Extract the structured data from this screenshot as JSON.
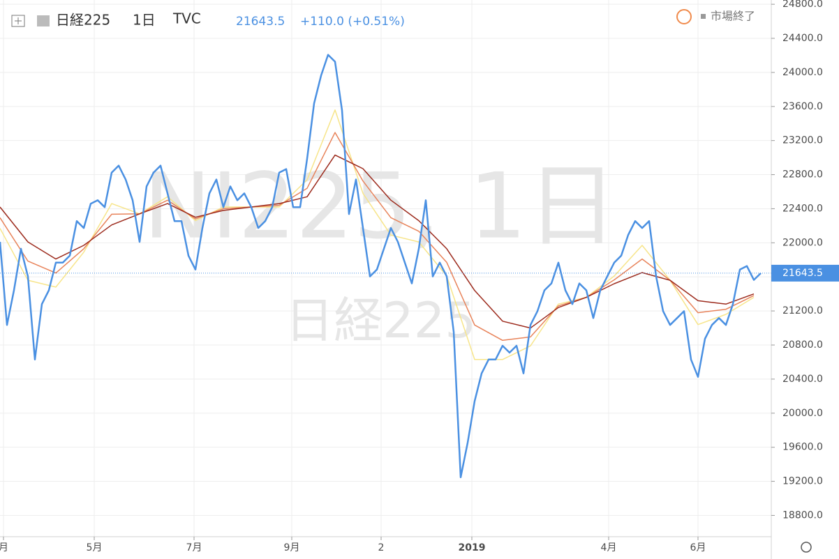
{
  "chart_data": {
    "type": "line",
    "symbol": "日経225",
    "interval": "1日",
    "exchange": "TVC",
    "last_value": 21643.5,
    "change": "+110.0 (+0.51%)",
    "status": "市場終了",
    "watermark": "NI225, 1日",
    "watermark_sub": "日経225",
    "x": [
      0,
      1,
      2,
      3,
      4,
      5,
      6,
      7,
      8,
      9,
      10,
      11,
      12,
      13,
      14,
      15,
      16,
      17,
      18,
      19,
      20,
      21,
      22,
      23,
      24,
      25,
      26,
      27,
      28,
      29,
      30,
      31,
      32,
      33,
      34,
      35,
      36,
      37,
      38,
      39,
      40,
      41,
      42,
      43,
      44,
      45,
      46,
      47,
      48,
      49,
      50,
      51,
      52,
      53,
      54,
      55,
      56,
      57,
      58,
      59,
      60,
      61,
      62,
      63,
      64,
      65,
      66,
      67,
      68,
      69,
      70,
      71,
      72,
      73,
      74,
      75,
      76,
      77,
      78,
      79,
      80,
      81,
      82,
      83,
      84,
      85,
      86,
      87,
      88,
      89,
      90,
      91,
      92,
      93,
      94,
      95,
      96,
      97,
      98,
      99,
      100,
      101,
      102,
      103,
      104,
      105,
      106,
      107,
      108,
      109
    ],
    "series": [
      {
        "color": "#f7e58a",
        "x": [
          0,
          4,
          8,
          12,
          16,
          20,
          24,
          28,
          32,
          36,
          40,
          44,
          48,
          52,
          56,
          60,
          64,
          68,
          72,
          76,
          80,
          84,
          88,
          92,
          96,
          100,
          104,
          108
        ],
        "values": [
          22170,
          21560,
          21480,
          21890,
          22460,
          22340,
          22540,
          22260,
          22420,
          22420,
          22420,
          22740,
          23560,
          22580,
          22090,
          22010,
          21610,
          20630,
          20630,
          20790,
          21280,
          21360,
          21610,
          21970,
          21560,
          21040,
          21160,
          21360
        ]
      },
      {
        "color": "#e8835a",
        "x": [
          0,
          4,
          8,
          12,
          16,
          20,
          24,
          28,
          32,
          36,
          40,
          44,
          48,
          52,
          56,
          60,
          64,
          68,
          72,
          76,
          80,
          84,
          88,
          92,
          96,
          100,
          104,
          108
        ],
        "values": [
          22295,
          21785,
          21645,
          21930,
          22335,
          22340,
          22500,
          22280,
          22400,
          22420,
          22440,
          22640,
          23295,
          22725,
          22295,
          22135,
          21770,
          21035,
          20855,
          20895,
          21260,
          21360,
          21565,
          21810,
          21560,
          21180,
          21220,
          21380
        ]
      },
      {
        "color": "#9c2a1c",
        "x": [
          0,
          4,
          8,
          12,
          16,
          20,
          24,
          28,
          32,
          36,
          40,
          44,
          48,
          52,
          56,
          60,
          64,
          68,
          72,
          76,
          80,
          84,
          88,
          92,
          96,
          100,
          104,
          108
        ],
        "values": [
          22420,
          22010,
          21810,
          21970,
          22210,
          22340,
          22460,
          22300,
          22380,
          22420,
          22460,
          22540,
          23030,
          22870,
          22500,
          22260,
          21930,
          21440,
          21080,
          21000,
          21240,
          21360,
          21520,
          21650,
          21560,
          21320,
          21280,
          21400
        ]
      },
      {
        "color": "#4a90e2",
        "values": [
          22011,
          21036,
          21442,
          21930,
          21605,
          20630,
          21280,
          21442,
          21767,
          21767,
          21849,
          22255,
          22174,
          22459,
          22499,
          22418,
          22824,
          22906,
          22743,
          22499,
          22011,
          22662,
          22824,
          22906,
          22580,
          22255,
          22255,
          21849,
          21686,
          22174,
          22580,
          22743,
          22418,
          22662,
          22499,
          22580,
          22418,
          22174,
          22255,
          22418,
          22824,
          22865,
          22418,
          22418,
          22987,
          23637,
          23963,
          24207,
          24126,
          23556,
          22337,
          22743,
          22174,
          21605,
          21686,
          21930,
          22174,
          22011,
          21767,
          21523,
          21930,
          22499,
          21605,
          21767,
          21605,
          20955,
          19247,
          19654,
          20142,
          20467,
          20630,
          20630,
          20792,
          20711,
          20792,
          20467,
          21036,
          21198,
          21442,
          21523,
          21767,
          21442,
          21280,
          21523,
          21442,
          21117,
          21442,
          21605,
          21767,
          21849,
          22093,
          22255,
          22174,
          22255,
          21605,
          21198,
          21036,
          21117,
          21198,
          20630,
          20426,
          20874,
          21036,
          21117,
          21036,
          21280,
          21686,
          21727,
          21564,
          21643.5
        ]
      }
    ],
    "xlim": [
      0,
      110
    ],
    "xticks": [
      {
        "value": 0.5,
        "label": "月"
      },
      {
        "value": 13.5,
        "label": "5月"
      },
      {
        "value": 27.8,
        "label": "7月"
      },
      {
        "value": 41.8,
        "label": "9月"
      },
      {
        "value": 54.6,
        "label": "2"
      },
      {
        "value": 67.6,
        "label": "2019"
      },
      {
        "value": 87.2,
        "label": "4月"
      },
      {
        "value": 100,
        "label": "6月"
      }
    ],
    "ylim": [
      18550,
      24850
    ],
    "yticks": [
      {
        "value": 18800,
        "label": "18800.0"
      },
      {
        "value": 19200,
        "label": "19200.0"
      },
      {
        "value": 19600,
        "label": "19600.0"
      },
      {
        "value": 20000,
        "label": "20000.0"
      },
      {
        "value": 20400,
        "label": "20400.0"
      },
      {
        "value": 20800,
        "label": "20800.0"
      },
      {
        "value": 21200,
        "label": "21200.0"
      },
      {
        "value": 21600,
        "label": "21600.0"
      },
      {
        "value": 22000,
        "label": "22000.0"
      },
      {
        "value": 22400,
        "label": "22400.0"
      },
      {
        "value": 22800,
        "label": "22800.0"
      },
      {
        "value": 23200,
        "label": "23200.0"
      },
      {
        "value": 23600,
        "label": "23600.0"
      },
      {
        "value": 24000,
        "label": "24000.0"
      },
      {
        "value": 24400,
        "label": "24400.0"
      },
      {
        "value": 24800,
        "label": "24800.0"
      }
    ],
    "grid": true
  }
}
